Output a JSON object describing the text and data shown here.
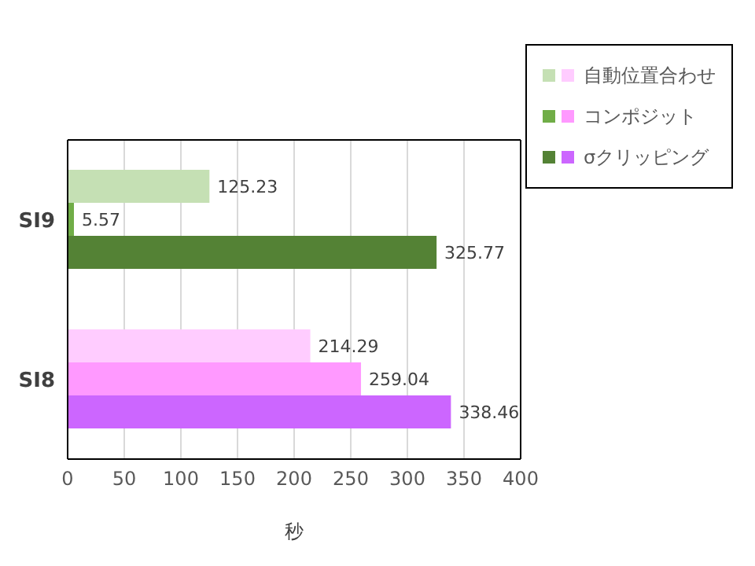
{
  "chart_data": {
    "type": "bar",
    "orientation": "horizontal",
    "xlabel": "秒",
    "categories": [
      "SI9",
      "SI8"
    ],
    "series": [
      {
        "name": "自動位置合わせ",
        "colors": [
          "#c5e0b4",
          "#ffccff"
        ],
        "values": [
          125.23,
          214.29
        ]
      },
      {
        "name": "コンポジット",
        "colors": [
          "#70ad47",
          "#ff99ff"
        ],
        "values": [
          5.57,
          259.04
        ]
      },
      {
        "name": "σクリッピング",
        "colors": [
          "#548235",
          "#cc66ff"
        ],
        "values": [
          325.77,
          338.46
        ]
      }
    ],
    "xlim": [
      0,
      400
    ],
    "xticks": [
      0,
      50,
      100,
      150,
      200,
      250,
      300,
      350,
      400
    ],
    "grid": "x",
    "legend": "top right",
    "data_labels": true
  }
}
